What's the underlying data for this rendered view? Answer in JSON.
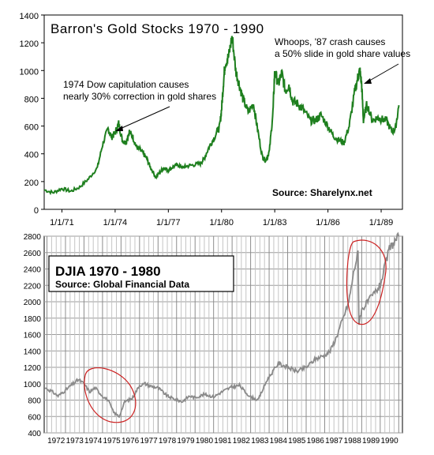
{
  "chart_data": [
    {
      "type": "line",
      "title": "Barron's Gold Stocks 1970 - 1990",
      "source": "Source: Sharelynx.net",
      "xlabel": "",
      "ylabel": "",
      "x_ticks": [
        "1/1/71",
        "1/1/74",
        "1/1/77",
        "1/1/80",
        "1/1/83",
        "1/1/86",
        "1/1/89"
      ],
      "ylim": [
        0,
        1400
      ],
      "y_ticks": [
        0,
        200,
        400,
        600,
        800,
        1000,
        1200,
        1400
      ],
      "grid": false,
      "annotations": [
        {
          "text": [
            "1974 Dow capitulation causes",
            "nearly 30% correction in gold shares"
          ],
          "arrow_to": {
            "date": 1974.3,
            "value": 620
          }
        },
        {
          "text": [
            "Whoops, '87 crash causes",
            "a 50% slide in gold share values"
          ],
          "arrow_to": {
            "date": 1987.9,
            "value": 980
          }
        }
      ],
      "series": [
        {
          "color": "#1e7f1e",
          "x": [
            1970.0,
            1970.5,
            1971.0,
            1971.5,
            1972.0,
            1972.5,
            1973.0,
            1973.3,
            1973.6,
            1973.8,
            1974.0,
            1974.2,
            1974.4,
            1974.6,
            1974.8,
            1975.0,
            1975.2,
            1975.4,
            1975.6,
            1975.8,
            1976.0,
            1976.3,
            1976.6,
            1976.8,
            1977.0,
            1977.3,
            1977.6,
            1977.8,
            1978.0,
            1978.4,
            1978.8,
            1979.0,
            1979.3,
            1979.6,
            1979.9,
            1980.0,
            1980.1,
            1980.2,
            1980.4,
            1980.6,
            1980.8,
            1981.0,
            1981.2,
            1981.5,
            1981.8,
            1982.0,
            1982.3,
            1982.5,
            1982.7,
            1982.9,
            1983.0,
            1983.2,
            1983.4,
            1983.6,
            1983.8,
            1984.0,
            1984.3,
            1984.6,
            1985.0,
            1985.3,
            1985.6,
            1986.0,
            1986.3,
            1986.6,
            1986.9,
            1987.2,
            1987.5,
            1987.7,
            1987.8,
            1987.9,
            1988.0,
            1988.2,
            1988.5,
            1988.8,
            1989.0,
            1989.3,
            1989.6,
            1989.8,
            1990.0
          ],
          "values": [
            140,
            120,
            150,
            130,
            160,
            220,
            300,
            470,
            580,
            520,
            550,
            620,
            500,
            480,
            560,
            520,
            450,
            430,
            400,
            360,
            300,
            230,
            280,
            300,
            280,
            310,
            320,
            300,
            310,
            320,
            330,
            360,
            450,
            520,
            600,
            720,
            900,
            1050,
            1100,
            1250,
            1000,
            900,
            800,
            700,
            760,
            600,
            380,
            350,
            420,
            700,
            1000,
            900,
            980,
            850,
            900,
            780,
            760,
            720,
            640,
            640,
            680,
            600,
            530,
            500,
            480,
            600,
            840,
            960,
            1000,
            900,
            640,
            760,
            640,
            660,
            650,
            640,
            560,
            580,
            750
          ]
        }
      ]
    },
    {
      "type": "line",
      "title": "DJIA 1970 - 1980",
      "source": "Source: Global Financial Data",
      "xlabel": "",
      "ylabel": "",
      "x_ticks": [
        "1972",
        "1973",
        "1974",
        "1975",
        "1976",
        "1977",
        "1978",
        "1979",
        "1980",
        "1981",
        "1982",
        "1983",
        "1984",
        "1985",
        "1986",
        "1987",
        "1988",
        "1989",
        "1990"
      ],
      "ylim": [
        400,
        2800
      ],
      "y_ticks": [
        400,
        600,
        800,
        1000,
        1200,
        1400,
        1600,
        1800,
        2000,
        2200,
        2400,
        2600,
        2800
      ],
      "grid": true,
      "series": [
        {
          "color": "#8a8a8a",
          "x": [
            1970.9,
            1971.3,
            1971.6,
            1972.0,
            1972.3,
            1972.7,
            1973.0,
            1973.3,
            1973.6,
            1974.0,
            1974.3,
            1974.6,
            1974.9,
            1975.2,
            1975.6,
            1976.0,
            1976.3,
            1976.6,
            1977.0,
            1977.5,
            1978.0,
            1978.3,
            1978.7,
            1979.0,
            1979.5,
            1980.0,
            1980.3,
            1980.6,
            1981.0,
            1981.4,
            1981.7,
            1982.0,
            1982.4,
            1982.6,
            1982.9,
            1983.2,
            1983.5,
            1984.0,
            1984.5,
            1985.0,
            1985.5,
            1986.0,
            1986.3,
            1986.6,
            1987.0,
            1987.3,
            1987.6,
            1987.8,
            1987.85,
            1988.0,
            1988.5,
            1989.0,
            1989.5,
            1990.0
          ],
          "values": [
            950,
            900,
            850,
            920,
            980,
            1050,
            1000,
            900,
            950,
            850,
            800,
            650,
            600,
            780,
            820,
            980,
            1000,
            970,
            950,
            850,
            800,
            780,
            850,
            830,
            870,
            840,
            880,
            920,
            960,
            980,
            900,
            840,
            800,
            900,
            1050,
            1150,
            1250,
            1200,
            1150,
            1200,
            1300,
            1350,
            1400,
            1550,
            1800,
            2000,
            2400,
            2600,
            1750,
            1900,
            2050,
            2200,
            2650,
            2800
          ]
        }
      ],
      "circled_regions": [
        {
          "x": 1975.0,
          "y": 780
        },
        {
          "x": 1988.3,
          "y": 2300
        }
      ]
    }
  ]
}
